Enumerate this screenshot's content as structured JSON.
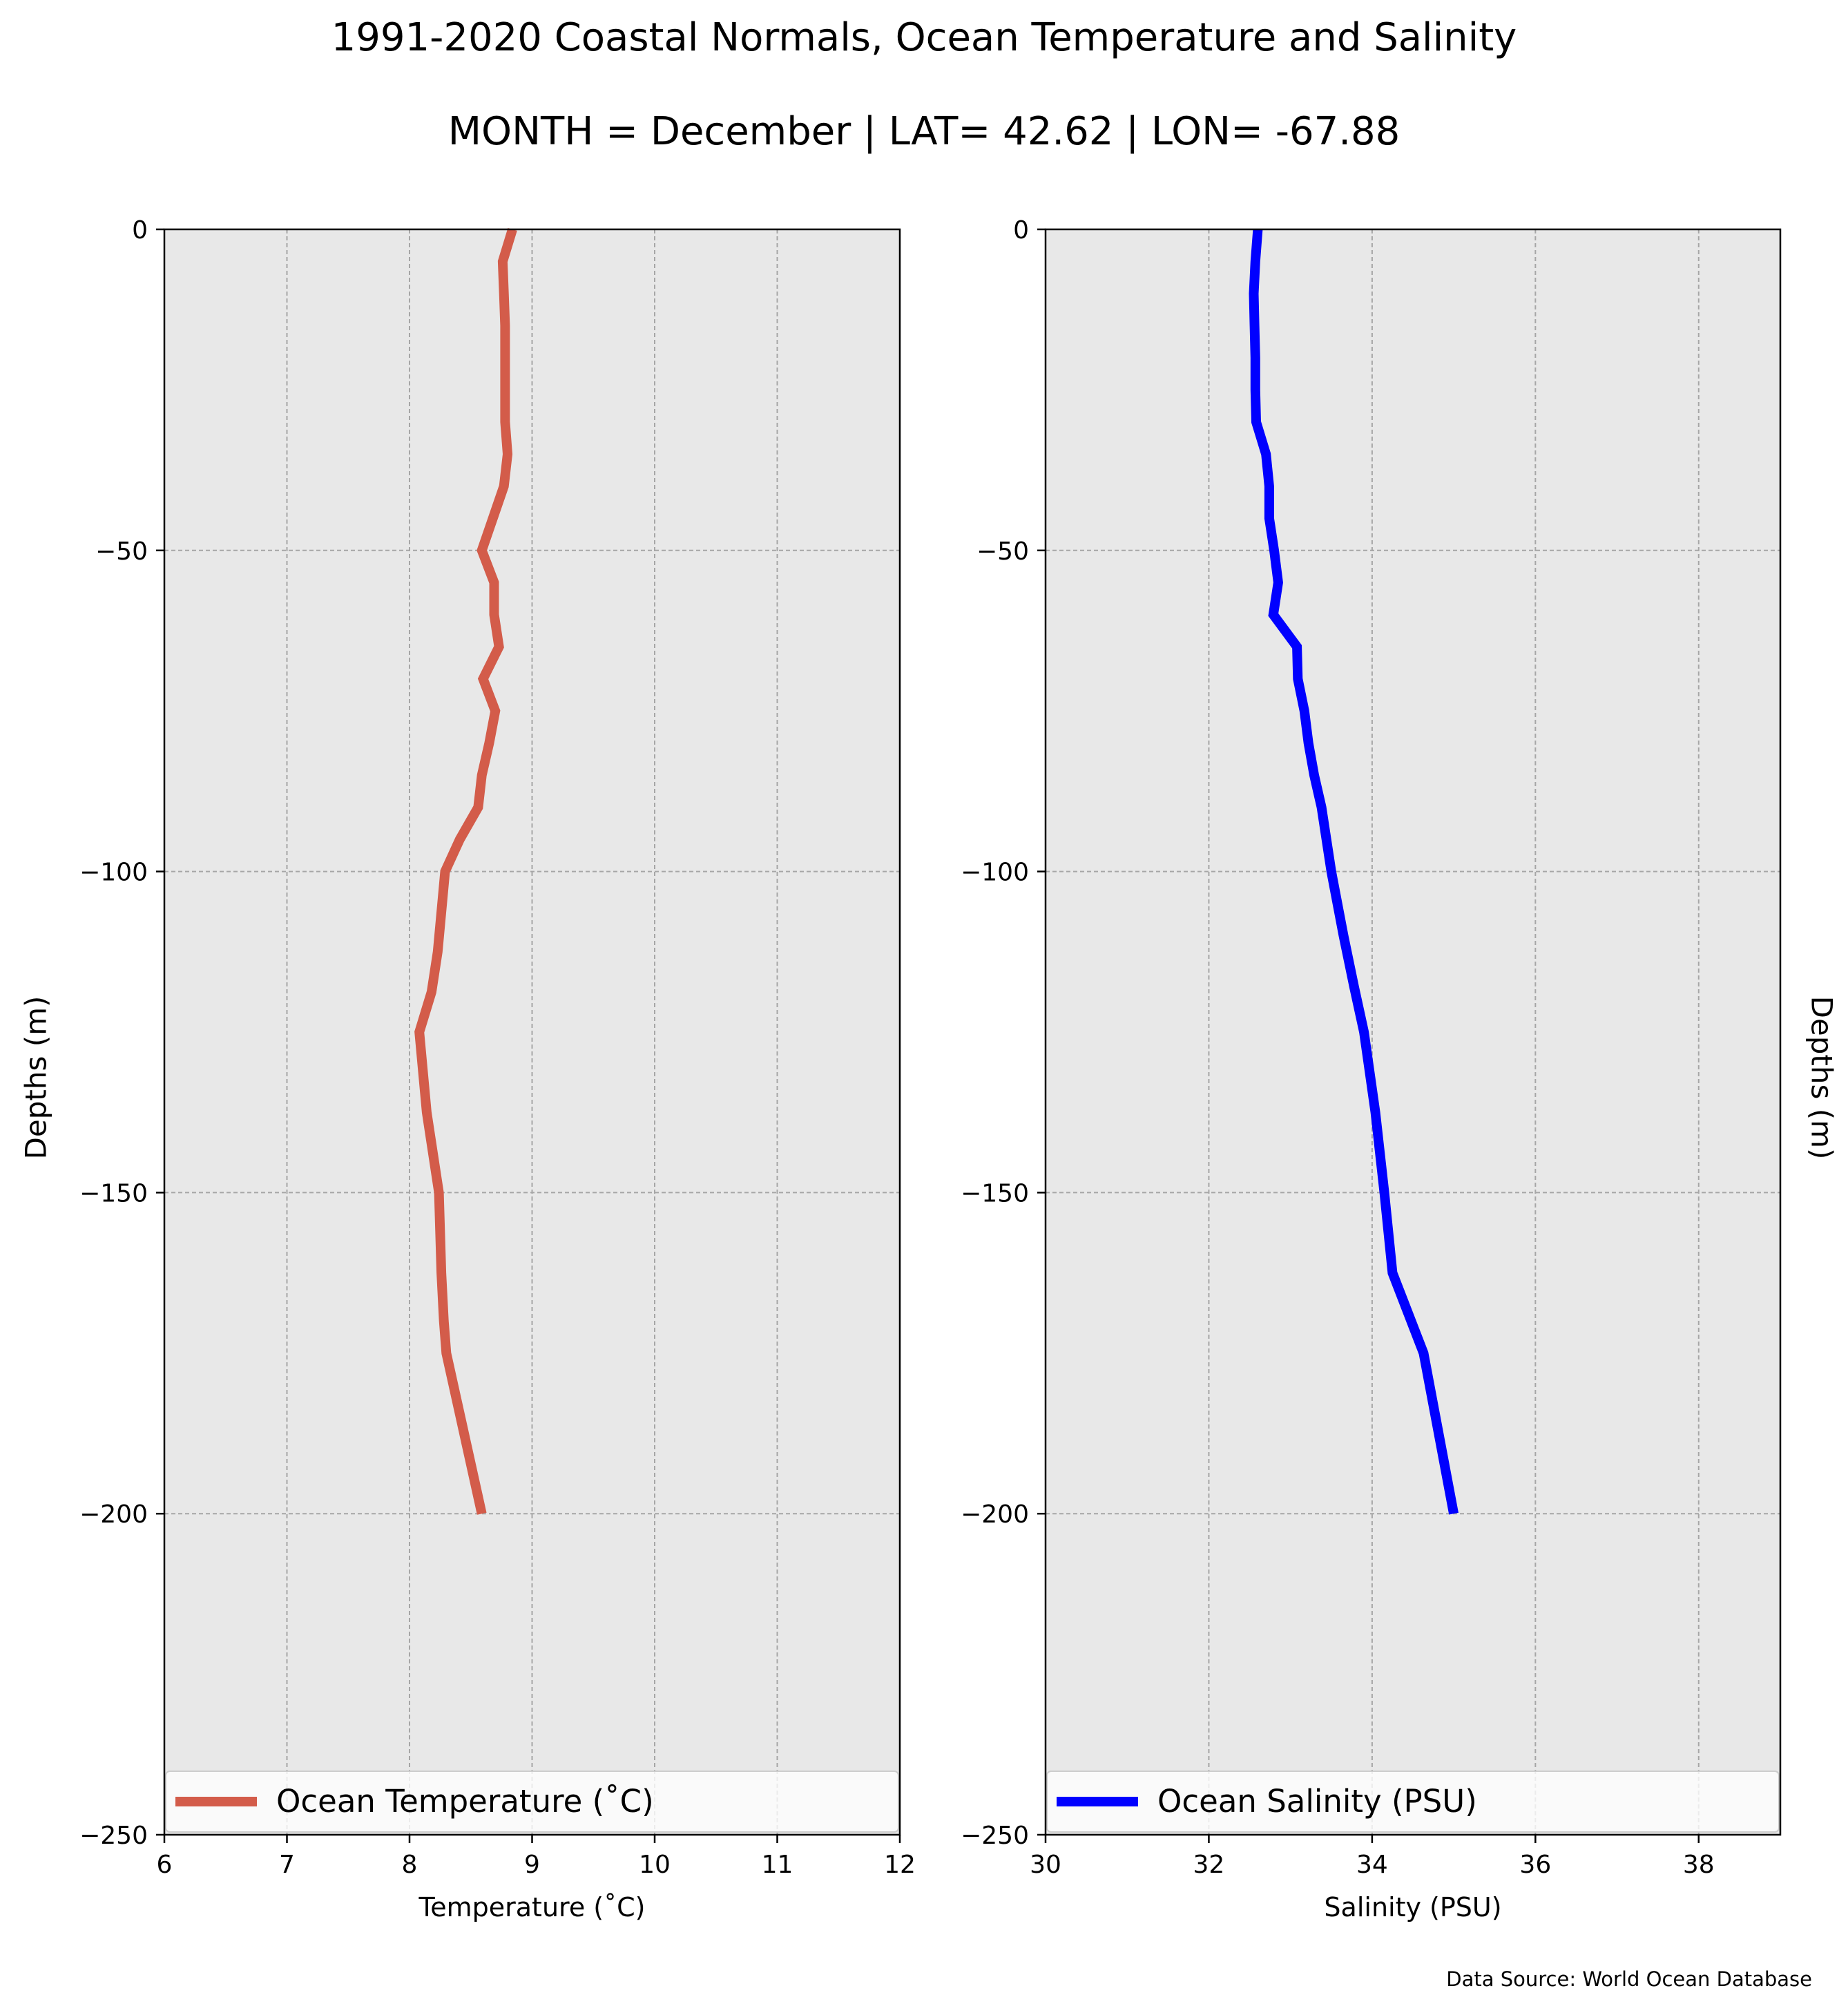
{
  "figure": {
    "title": "1991-2020 Coastal Normals, Ocean Temperature and Salinity",
    "subtitle": "MONTH = December | LAT= 42.62 | LON= -67.88",
    "source": "Data Source: World Ocean Database",
    "background_color": "#e8e8e8",
    "grid_color": "#a6a6a6"
  },
  "chart_data": [
    {
      "type": "line",
      "ylabel": "Depths (m)",
      "xlabel": "Temperature ($^\\circ$C)",
      "xlabel_display": "Temperature (˚C)",
      "xlim": [
        6,
        12
      ],
      "ylim": [
        -250,
        0
      ],
      "xticks": [
        6,
        7,
        8,
        9,
        10,
        11,
        12
      ],
      "yticks": [
        0,
        -50,
        -100,
        -150,
        -200,
        -250
      ],
      "grid": true,
      "legend_location": "lower-center",
      "series": [
        {
          "name": "Ocean Temperature (˚C)",
          "color": "#d35c4a",
          "x": [
            8.84,
            8.76,
            8.77,
            8.78,
            8.78,
            8.78,
            8.78,
            8.8,
            8.77,
            8.68,
            8.59,
            8.69,
            8.69,
            8.73,
            8.6,
            8.7,
            8.65,
            8.59,
            8.56,
            8.41,
            8.29,
            8.23,
            8.18,
            8.08,
            8.14,
            8.24,
            8.26,
            8.28,
            8.3,
            8.59
          ],
          "y": [
            0,
            -5,
            -10,
            -15,
            -20,
            -25,
            -30,
            -35,
            -40,
            -45,
            -50,
            -55,
            -60,
            -65,
            -70,
            -75,
            -80,
            -85,
            -90,
            -95,
            -100,
            -112.5,
            -118.75,
            -125,
            -137.5,
            -150,
            -162.5,
            -170,
            -175,
            -200
          ]
        }
      ]
    },
    {
      "type": "line",
      "ylabel": "Depths (m)",
      "xlabel": "Salinity (PSU)",
      "xlim": [
        30,
        39
      ],
      "ylim": [
        -250,
        0
      ],
      "xticks": [
        30,
        32,
        34,
        36,
        38
      ],
      "yticks": [
        0,
        -50,
        -100,
        -150,
        -200,
        -250
      ],
      "grid": true,
      "legend_location": "lower-center",
      "series": [
        {
          "name": "Ocean Salinity (PSU)",
          "color": "#0000ff",
          "x": [
            32.6,
            32.57,
            32.55,
            32.56,
            32.57,
            32.57,
            32.58,
            32.7,
            32.74,
            32.74,
            32.8,
            32.85,
            32.79,
            33.08,
            33.09,
            33.17,
            33.22,
            33.29,
            33.38,
            33.5,
            33.65,
            33.78,
            33.9,
            34.04,
            34.15,
            34.25,
            34.63,
            35.0
          ],
          "y": [
            0,
            -5,
            -10,
            -15,
            -20,
            -25,
            -30,
            -35,
            -40,
            -45,
            -50,
            -55,
            -60,
            -65,
            -70,
            -75,
            -80,
            -85,
            -90,
            -100,
            -110,
            -118,
            -125,
            -137.5,
            -150,
            -162.5,
            -175,
            -200
          ]
        }
      ]
    }
  ]
}
